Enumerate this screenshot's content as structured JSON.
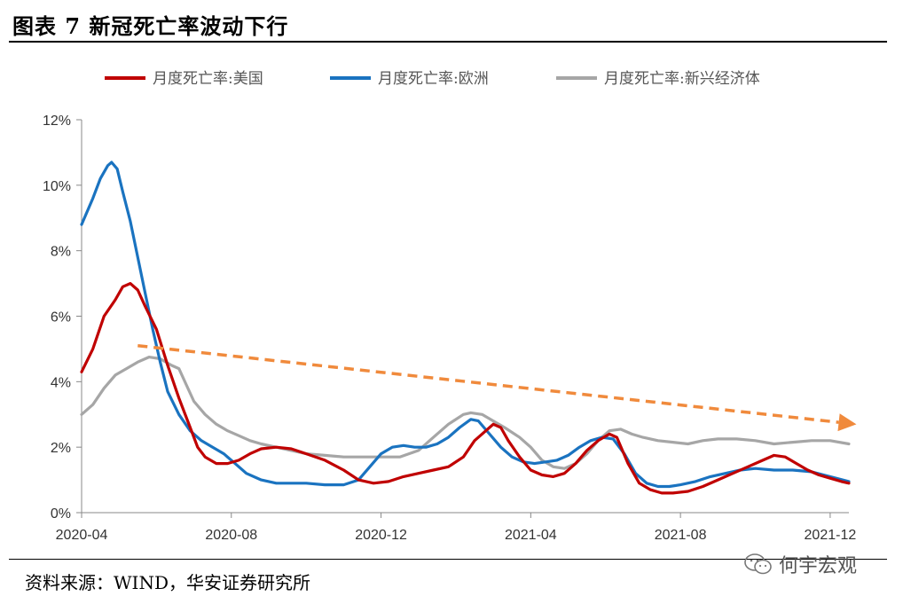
{
  "title": "图表 7 新冠死亡率波动下行",
  "source": "资料来源：WIND，华安证券研究所",
  "watermark": "何宇宏观",
  "icons": {
    "watermark": "wechat-icon"
  },
  "chart_data": {
    "type": "line",
    "title": "新冠死亡率波动下行",
    "xlabel": "",
    "ylabel": "",
    "ylim": [
      0,
      12
    ],
    "yticks": [
      "0%",
      "2%",
      "4%",
      "6%",
      "8%",
      "10%",
      "12%"
    ],
    "xticks": [
      {
        "label": "2020-04",
        "month": 0
      },
      {
        "label": "2020-08",
        "month": 4
      },
      {
        "label": "2020-12",
        "month": 8
      },
      {
        "label": "2021-04",
        "month": 12
      },
      {
        "label": "2021-08",
        "month": 16
      },
      {
        "label": "2021-12",
        "month": 20
      }
    ],
    "xlim": [
      0,
      20.5
    ],
    "legend_position": "top",
    "series": [
      {
        "name": "月度死亡率:美国",
        "color": "#c00000",
        "points": [
          [
            0,
            4.3
          ],
          [
            0.3,
            5.0
          ],
          [
            0.6,
            6.0
          ],
          [
            0.9,
            6.5
          ],
          [
            1.1,
            6.9
          ],
          [
            1.3,
            7.0
          ],
          [
            1.5,
            6.8
          ],
          [
            1.7,
            6.3
          ],
          [
            2.0,
            5.6
          ],
          [
            2.3,
            4.5
          ],
          [
            2.6,
            3.5
          ],
          [
            2.9,
            2.6
          ],
          [
            3.1,
            2.0
          ],
          [
            3.3,
            1.7
          ],
          [
            3.6,
            1.5
          ],
          [
            3.9,
            1.5
          ],
          [
            4.2,
            1.6
          ],
          [
            4.5,
            1.8
          ],
          [
            4.8,
            1.95
          ],
          [
            5.2,
            2.0
          ],
          [
            5.6,
            1.95
          ],
          [
            6.0,
            1.8
          ],
          [
            6.5,
            1.6
          ],
          [
            7.0,
            1.3
          ],
          [
            7.4,
            1.0
          ],
          [
            7.8,
            0.9
          ],
          [
            8.2,
            0.95
          ],
          [
            8.6,
            1.1
          ],
          [
            9.0,
            1.2
          ],
          [
            9.4,
            1.3
          ],
          [
            9.8,
            1.4
          ],
          [
            10.2,
            1.7
          ],
          [
            10.5,
            2.2
          ],
          [
            10.8,
            2.5
          ],
          [
            11.0,
            2.7
          ],
          [
            11.2,
            2.6
          ],
          [
            11.4,
            2.2
          ],
          [
            11.7,
            1.7
          ],
          [
            12.0,
            1.3
          ],
          [
            12.3,
            1.15
          ],
          [
            12.6,
            1.1
          ],
          [
            12.9,
            1.2
          ],
          [
            13.2,
            1.5
          ],
          [
            13.5,
            1.9
          ],
          [
            13.8,
            2.2
          ],
          [
            14.1,
            2.4
          ],
          [
            14.3,
            2.3
          ],
          [
            14.6,
            1.5
          ],
          [
            14.9,
            0.9
          ],
          [
            15.2,
            0.7
          ],
          [
            15.5,
            0.6
          ],
          [
            15.8,
            0.6
          ],
          [
            16.2,
            0.65
          ],
          [
            16.6,
            0.8
          ],
          [
            17.0,
            1.0
          ],
          [
            17.4,
            1.2
          ],
          [
            17.8,
            1.4
          ],
          [
            18.2,
            1.6
          ],
          [
            18.5,
            1.75
          ],
          [
            18.8,
            1.7
          ],
          [
            19.1,
            1.5
          ],
          [
            19.4,
            1.3
          ],
          [
            19.7,
            1.15
          ],
          [
            20.0,
            1.05
          ],
          [
            20.3,
            0.95
          ],
          [
            20.5,
            0.9
          ]
        ]
      },
      {
        "name": "月度死亡率:欧洲",
        "color": "#1a73c0",
        "points": [
          [
            0,
            8.8
          ],
          [
            0.3,
            9.6
          ],
          [
            0.5,
            10.2
          ],
          [
            0.7,
            10.6
          ],
          [
            0.8,
            10.7
          ],
          [
            0.95,
            10.5
          ],
          [
            1.1,
            9.8
          ],
          [
            1.3,
            8.9
          ],
          [
            1.5,
            7.8
          ],
          [
            1.7,
            6.7
          ],
          [
            1.9,
            5.6
          ],
          [
            2.1,
            4.6
          ],
          [
            2.3,
            3.7
          ],
          [
            2.6,
            3.0
          ],
          [
            2.9,
            2.5
          ],
          [
            3.2,
            2.2
          ],
          [
            3.5,
            2.0
          ],
          [
            3.8,
            1.8
          ],
          [
            4.1,
            1.5
          ],
          [
            4.4,
            1.2
          ],
          [
            4.8,
            1.0
          ],
          [
            5.2,
            0.9
          ],
          [
            5.6,
            0.9
          ],
          [
            6.0,
            0.9
          ],
          [
            6.5,
            0.85
          ],
          [
            7.0,
            0.85
          ],
          [
            7.4,
            1.0
          ],
          [
            7.7,
            1.4
          ],
          [
            8.0,
            1.8
          ],
          [
            8.3,
            2.0
          ],
          [
            8.6,
            2.05
          ],
          [
            8.9,
            2.0
          ],
          [
            9.2,
            2.0
          ],
          [
            9.5,
            2.1
          ],
          [
            9.8,
            2.3
          ],
          [
            10.1,
            2.6
          ],
          [
            10.4,
            2.85
          ],
          [
            10.6,
            2.8
          ],
          [
            10.9,
            2.4
          ],
          [
            11.2,
            2.0
          ],
          [
            11.5,
            1.7
          ],
          [
            11.8,
            1.55
          ],
          [
            12.1,
            1.5
          ],
          [
            12.4,
            1.55
          ],
          [
            12.7,
            1.6
          ],
          [
            13.0,
            1.75
          ],
          [
            13.3,
            2.0
          ],
          [
            13.6,
            2.2
          ],
          [
            13.9,
            2.3
          ],
          [
            14.2,
            2.25
          ],
          [
            14.5,
            1.8
          ],
          [
            14.8,
            1.2
          ],
          [
            15.1,
            0.9
          ],
          [
            15.4,
            0.8
          ],
          [
            15.7,
            0.8
          ],
          [
            16.0,
            0.85
          ],
          [
            16.4,
            0.95
          ],
          [
            16.8,
            1.1
          ],
          [
            17.2,
            1.2
          ],
          [
            17.6,
            1.3
          ],
          [
            18.0,
            1.35
          ],
          [
            18.5,
            1.3
          ],
          [
            19.0,
            1.3
          ],
          [
            19.5,
            1.25
          ],
          [
            20.0,
            1.1
          ],
          [
            20.5,
            0.95
          ]
        ]
      },
      {
        "name": "月度死亡率:新兴经济体",
        "color": "#a6a6a6",
        "points": [
          [
            0,
            3.0
          ],
          [
            0.3,
            3.3
          ],
          [
            0.6,
            3.8
          ],
          [
            0.9,
            4.2
          ],
          [
            1.2,
            4.4
          ],
          [
            1.5,
            4.6
          ],
          [
            1.8,
            4.75
          ],
          [
            2.1,
            4.7
          ],
          [
            2.4,
            4.5
          ],
          [
            2.6,
            4.4
          ],
          [
            2.8,
            3.9
          ],
          [
            3.0,
            3.4
          ],
          [
            3.3,
            3.0
          ],
          [
            3.6,
            2.7
          ],
          [
            3.9,
            2.5
          ],
          [
            4.2,
            2.35
          ],
          [
            4.5,
            2.2
          ],
          [
            4.8,
            2.1
          ],
          [
            5.2,
            2.0
          ],
          [
            5.6,
            1.9
          ],
          [
            6.0,
            1.8
          ],
          [
            6.5,
            1.75
          ],
          [
            7.0,
            1.7
          ],
          [
            7.5,
            1.7
          ],
          [
            8.0,
            1.7
          ],
          [
            8.5,
            1.7
          ],
          [
            9.0,
            1.9
          ],
          [
            9.4,
            2.3
          ],
          [
            9.8,
            2.7
          ],
          [
            10.2,
            3.0
          ],
          [
            10.4,
            3.05
          ],
          [
            10.7,
            3.0
          ],
          [
            11.0,
            2.8
          ],
          [
            11.3,
            2.6
          ],
          [
            11.7,
            2.3
          ],
          [
            12.0,
            2.0
          ],
          [
            12.3,
            1.6
          ],
          [
            12.6,
            1.4
          ],
          [
            12.9,
            1.35
          ],
          [
            13.2,
            1.5
          ],
          [
            13.5,
            1.8
          ],
          [
            13.8,
            2.2
          ],
          [
            14.1,
            2.5
          ],
          [
            14.4,
            2.55
          ],
          [
            14.7,
            2.4
          ],
          [
            15.0,
            2.3
          ],
          [
            15.4,
            2.2
          ],
          [
            15.8,
            2.15
          ],
          [
            16.2,
            2.1
          ],
          [
            16.6,
            2.2
          ],
          [
            17.0,
            2.25
          ],
          [
            17.5,
            2.25
          ],
          [
            18.0,
            2.2
          ],
          [
            18.5,
            2.1
          ],
          [
            19.0,
            2.15
          ],
          [
            19.5,
            2.2
          ],
          [
            20.0,
            2.2
          ],
          [
            20.5,
            2.1
          ]
        ]
      }
    ],
    "annotations": [
      {
        "type": "trend-arrow",
        "label": "",
        "color": "#f08a3c",
        "from": [
          1.5,
          5.1
        ],
        "to": [
          20.7,
          2.7
        ]
      }
    ]
  }
}
